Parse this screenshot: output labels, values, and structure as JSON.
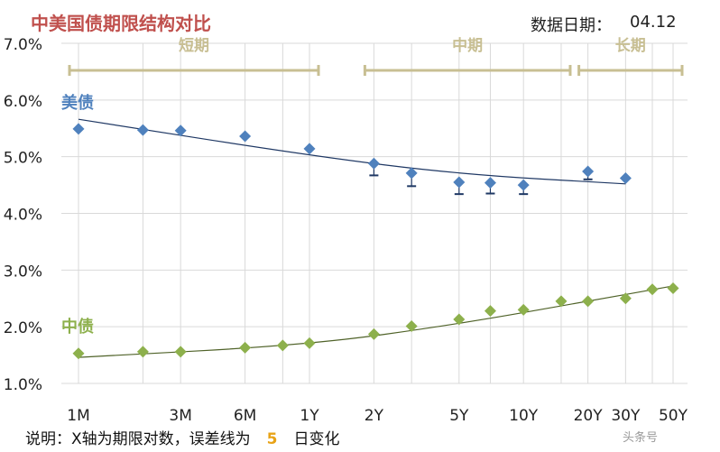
{
  "header": {
    "title": "中美国债期限结构对比",
    "date_label": "数据日期：",
    "date_value": "04.12"
  },
  "footer": {
    "note_prefix": "说明：X轴为期限对数，误差线为",
    "note_days": "5",
    "note_suffix": "日变化"
  },
  "watermark": "头条号",
  "colors": {
    "us": "#4f81bd",
    "us_trend": "#1f3864",
    "cn": "#8db04c",
    "cn_trend": "#4f6228",
    "bracket": "#c8bf93",
    "grid": "#d9d9d9"
  },
  "chart_data": {
    "type": "scatter",
    "ylim": [
      1.0,
      7.0
    ],
    "yticks": [
      "1.0%",
      "2.0%",
      "3.0%",
      "4.0%",
      "5.0%",
      "6.0%",
      "7.0%"
    ],
    "x_scale": "log",
    "xticks": [
      "1M",
      "3M",
      "6M",
      "1Y",
      "2Y",
      "5Y",
      "10Y",
      "20Y",
      "30Y",
      "50Y"
    ],
    "xtick_values": [
      1,
      3,
      6,
      12,
      24,
      60,
      120,
      240,
      360,
      600
    ],
    "ranges": [
      {
        "label": "短期",
        "from": 1,
        "to": 12
      },
      {
        "label": "中期",
        "from": 24,
        "to": 180
      },
      {
        "label": "长期",
        "from": 240,
        "to": 600
      }
    ],
    "series": [
      {
        "name": "美债",
        "marker": "diamond",
        "x": [
          1,
          2,
          3,
          6,
          12,
          24,
          36,
          60,
          84,
          120,
          240,
          360
        ],
        "y": [
          5.49,
          5.47,
          5.46,
          5.36,
          5.14,
          4.88,
          4.71,
          4.55,
          4.54,
          4.5,
          4.74,
          4.62
        ],
        "error_low": [
          null,
          null,
          null,
          null,
          null,
          4.67,
          4.48,
          4.34,
          4.35,
          4.34,
          4.6,
          null
        ],
        "trend": [
          [
            1,
            5.66
          ],
          [
            12,
            5.02
          ],
          [
            60,
            4.69
          ],
          [
            360,
            4.52
          ]
        ]
      },
      {
        "name": "中债",
        "marker": "diamond",
        "x": [
          1,
          2,
          3,
          6,
          9,
          12,
          24,
          36,
          60,
          84,
          120,
          180,
          240,
          360,
          480,
          600
        ],
        "y": [
          1.53,
          1.56,
          1.56,
          1.63,
          1.67,
          1.71,
          1.87,
          2.01,
          2.13,
          2.28,
          2.3,
          2.45,
          2.45,
          2.5,
          2.66,
          2.68
        ],
        "trend": [
          [
            1,
            1.46
          ],
          [
            12,
            1.68
          ],
          [
            60,
            2.05
          ],
          [
            240,
            2.45
          ],
          [
            600,
            2.72
          ]
        ]
      }
    ]
  }
}
